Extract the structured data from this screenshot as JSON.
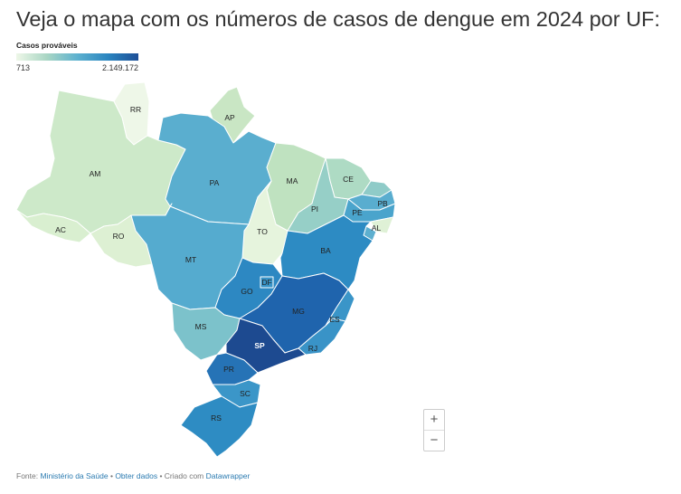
{
  "title": "Veja o mapa com os números de casos de dengue em 2024 por UF:",
  "legend": {
    "title": "Casos prováveis",
    "min_label": "713",
    "max_label": "2.149.172",
    "color_scale": [
      "#eef7e8",
      "#a9d6c4",
      "#5db1cf",
      "#2a85c0",
      "#1e4f97"
    ]
  },
  "states": {
    "RR": {
      "label": "RR",
      "color": "#eef7e8"
    },
    "AP": {
      "label": "AP",
      "color": "#c9e6c4"
    },
    "AM": {
      "label": "AM",
      "color": "#cde9c9"
    },
    "PA": {
      "label": "PA",
      "color": "#5aaecf"
    },
    "MA": {
      "label": "MA",
      "color": "#bfe2c0"
    },
    "CE": {
      "label": "CE",
      "color": "#aedbc4"
    },
    "PI": {
      "label": "PI",
      "color": "#96cfc7"
    },
    "RN": {
      "label": "",
      "color": "#8fcbc8"
    },
    "PB": {
      "label": "PB",
      "color": "#59adcf"
    },
    "PE": {
      "label": "PE",
      "color": "#4aa4cc"
    },
    "AL": {
      "label": "AL",
      "color": "#dff1d6"
    },
    "SE": {
      "label": "",
      "color": "#5dafcf"
    },
    "AC": {
      "label": "AC",
      "color": "#d9efd0"
    },
    "RO": {
      "label": "RO",
      "color": "#ddf0d3"
    },
    "TO": {
      "label": "TO",
      "color": "#e6f4dd"
    },
    "MT": {
      "label": "MT",
      "color": "#55abcf"
    },
    "BA": {
      "label": "BA",
      "color": "#2d8bc3"
    },
    "GO": {
      "label": "GO",
      "color": "#2d88c2"
    },
    "DF": {
      "label": "DF",
      "color": "#3893c7"
    },
    "MG": {
      "label": "MG",
      "color": "#1f64ad"
    },
    "ES": {
      "label": "ES",
      "color": "#3a95c8"
    },
    "RJ": {
      "label": "RJ",
      "color": "#3993c7"
    },
    "MS": {
      "label": "MS",
      "color": "#7cc2cb"
    },
    "SP": {
      "label": "SP",
      "color": "#1d4a90"
    },
    "PR": {
      "label": "PR",
      "color": "#2673b6"
    },
    "SC": {
      "label": "SC",
      "color": "#3b96c8"
    },
    "RS": {
      "label": "RS",
      "color": "#2e8cc3"
    }
  },
  "zoom": {
    "in_label": "+",
    "out_label": "−"
  },
  "footer": {
    "prefix": "Fonte: ",
    "source_link": "Ministério da Saúde",
    "sep1": " • ",
    "data_link": "Obter dados",
    "sep2": " • Criado com ",
    "tool_link": "Datawrapper"
  }
}
